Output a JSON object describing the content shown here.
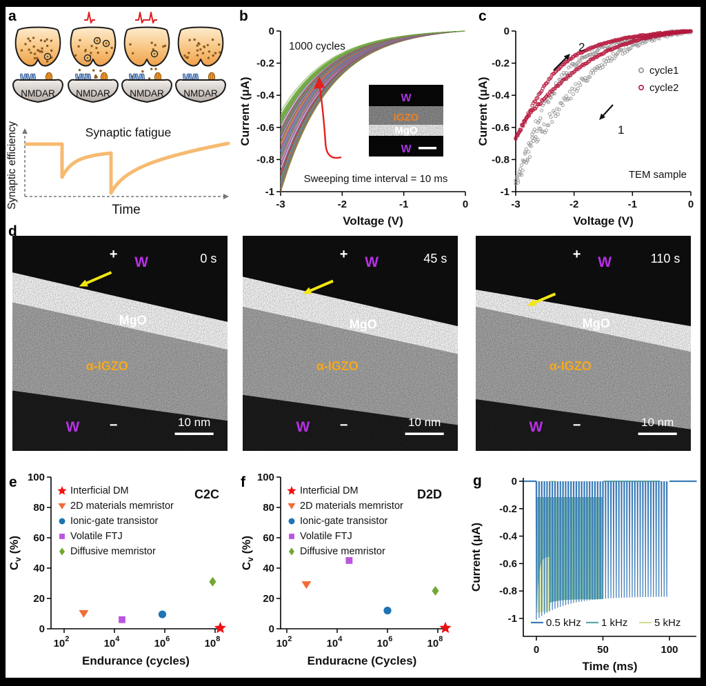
{
  "figure_labels": {
    "a": "a",
    "b": "b",
    "c": "c",
    "d": "d",
    "e": "e",
    "f": "f",
    "g": "g"
  },
  "panel_a": {
    "receptor_label": "NMDAR",
    "title": "Synaptic fatigue",
    "ylabel": "Synaptic efficiency",
    "xlabel": "Time"
  },
  "chart_data": [
    {
      "id": "b",
      "type": "line",
      "annotation_cycles": "1000 cycles",
      "annotation_sweep": "Sweeping time interval = 10 ms",
      "xlabel": "Voltage (V)",
      "ylabel": "Current (μA)",
      "xlim": [
        -3,
        0
      ],
      "ylim": [
        -1,
        0
      ],
      "xticks": [
        -3,
        -2,
        -1,
        0
      ],
      "yticks": [
        0,
        -0.2,
        -0.4,
        -0.6,
        -0.8,
        -1
      ],
      "n_curves": 1000,
      "current_at_minus3_first_cycle": -1.0,
      "current_at_minus3_last_cycle": -0.5,
      "arrow_color": "#e61e1e",
      "inset": {
        "layers": [
          "W",
          "IGZO",
          "MgO",
          "W"
        ],
        "layer_label_colors": [
          "#a735e0",
          "#f0801e",
          "#ffffff",
          "#a735e0"
        ]
      }
    },
    {
      "id": "c",
      "type": "scatter",
      "xlabel": "Voltage (V)",
      "ylabel": "Current (μA)",
      "xlim": [
        -3,
        0
      ],
      "ylim": [
        -1,
        0
      ],
      "xticks": [
        -3,
        -2,
        -1,
        0
      ],
      "yticks": [
        0,
        -0.2,
        -0.4,
        -0.6,
        -0.8,
        -1
      ],
      "series": [
        {
          "name": "cycle1",
          "color": "#8f8f8f",
          "peak_current": -0.95
        },
        {
          "name": "cycle2",
          "color": "#b5173c",
          "peak_current": -0.66
        }
      ],
      "sweep_labels": {
        "first": "1",
        "second": "2"
      },
      "annotation": "TEM sample"
    },
    {
      "id": "e",
      "type": "scatter",
      "title": "C2C",
      "xlabel": "Endurance (cycles)",
      "ylabel_parts": [
        "C",
        "v",
        " (%)"
      ],
      "xscale": "log",
      "xtick_exponents": [
        2,
        4,
        6,
        8
      ],
      "yticks": [
        0,
        20,
        40,
        60,
        80,
        100
      ],
      "ylim": [
        0,
        100
      ],
      "points": [
        {
          "name": "Interficial DM",
          "marker": "star",
          "color": "#ee1111",
          "x": 160000000,
          "y": 0.5
        },
        {
          "name": "2D materials memristor",
          "marker": "triangle",
          "color": "#f26c36",
          "x": 600,
          "y": 10
        },
        {
          "name": "Ionic-gate transistor",
          "marker": "circle",
          "color": "#1e74b4",
          "x": 800000,
          "y": 9.5
        },
        {
          "name": "Volatile FTJ",
          "marker": "square",
          "color": "#bb55e0",
          "x": 20000,
          "y": 6
        },
        {
          "name": "Diffusive memristor",
          "marker": "diamond",
          "color": "#70a832",
          "x": 80000000,
          "y": 31
        }
      ]
    },
    {
      "id": "f",
      "type": "scatter",
      "title": "D2D",
      "xlabel": "Enduracne (Cycles)",
      "ylabel_parts": [
        "C",
        "v",
        " (%)"
      ],
      "xscale": "log",
      "xtick_exponents": [
        2,
        4,
        6,
        8
      ],
      "yticks": [
        0,
        20,
        40,
        60,
        80,
        100
      ],
      "ylim": [
        0,
        100
      ],
      "points": [
        {
          "name": "Interficial DM",
          "marker": "star",
          "color": "#ee1111",
          "x": 200000000,
          "y": 0.5
        },
        {
          "name": "2D materials memristor",
          "marker": "triangle",
          "color": "#f26c36",
          "x": 600,
          "y": 29
        },
        {
          "name": "Ionic-gate transistor",
          "marker": "circle",
          "color": "#1e74b4",
          "x": 1000000,
          "y": 12
        },
        {
          "name": "Volatile FTJ",
          "marker": "square",
          "color": "#bb55e0",
          "x": 30000,
          "y": 45
        },
        {
          "name": "Diffusive memristor",
          "marker": "diamond",
          "color": "#70a832",
          "x": 80000000,
          "y": 25
        }
      ]
    },
    {
      "id": "g",
      "type": "line",
      "xlabel": "Time (ms)",
      "ylabel": "Current (μA)",
      "xticks": [
        0,
        50,
        100
      ],
      "yticks": [
        0,
        -0.2,
        -0.4,
        -0.6,
        -0.8,
        -1
      ],
      "xlim": [
        -10,
        120
      ],
      "ylim": [
        -1.1,
        0
      ],
      "series": [
        {
          "name": "0.5 kHz",
          "color": "#3c7cb8",
          "n_pulses": 50,
          "period_ms": 2,
          "I_first": -1.0,
          "I_last": -0.84,
          "I_between": 0
        },
        {
          "name": "1 kHz",
          "color": "#5fa8a4",
          "n_pulses": 50,
          "period_ms": 1,
          "I_first": -0.95,
          "I_last": -0.86,
          "I_between": -0.12
        },
        {
          "name": "5 kHz",
          "color": "#dce9b2",
          "n_pulses": 50,
          "period_ms": 0.2,
          "I_first": -1.0,
          "I_last": -0.95,
          "I_between": -0.55
        }
      ]
    }
  ],
  "panel_d": {
    "frames": [
      {
        "time": "0 s"
      },
      {
        "time": "45 s"
      },
      {
        "time": "110 s"
      }
    ],
    "labels": {
      "plus": "+",
      "minus": "−",
      "top_electrode": "W",
      "bottom_electrode": "W",
      "oxide": "MgO",
      "semiconductor": "α-IGZO",
      "scalebar": "10 nm"
    },
    "colors": {
      "electrode_label": "#b92fe8",
      "oxide_label": "#ffffff",
      "semiconductor_label": "#f5a81e",
      "arrow": "#f2e713"
    }
  }
}
